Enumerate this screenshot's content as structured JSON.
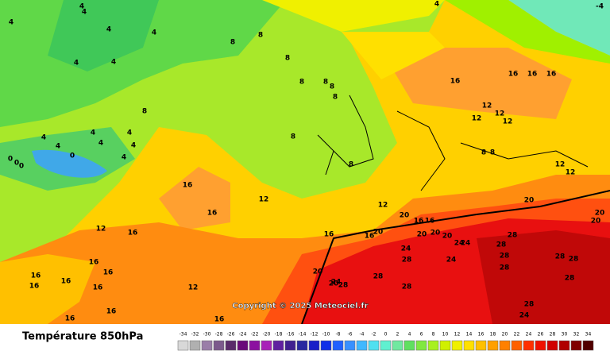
{
  "map": {
    "contour_labels": [
      4,
      4,
      4,
      4,
      4,
      4,
      4,
      4,
      -4,
      8,
      8,
      8,
      8,
      8,
      8,
      8,
      8,
      8,
      8,
      8,
      8,
      4,
      4,
      4,
      4,
      4,
      4,
      4,
      0,
      0,
      0,
      0,
      16,
      16,
      16,
      16,
      16,
      16,
      16,
      16,
      16,
      16,
      16,
      16,
      16,
      16,
      16,
      16,
      16,
      16,
      16,
      16,
      12,
      12,
      12,
      12,
      12,
      12,
      12,
      12,
      12,
      12,
      20,
      20,
      20,
      20,
      20,
      20,
      20,
      20,
      20,
      20,
      24,
      24,
      24,
      24,
      24,
      24,
      28,
      28,
      28,
      28,
      28,
      28,
      28,
      28,
      28,
      28,
      28,
      28
    ],
    "copyright": "Copyright © 2025 Meteociel.fr"
  },
  "legend": {
    "title": "Température 850hPa",
    "scale": [
      -34,
      -32,
      -30,
      -28,
      -26,
      -24,
      -22,
      -20,
      -18,
      -16,
      -14,
      -12,
      -10,
      -8,
      -6,
      -4,
      -2,
      0,
      2,
      4,
      6,
      8,
      10,
      12,
      14,
      16,
      18,
      20,
      22,
      24,
      26,
      28,
      30,
      32,
      34
    ],
    "colors": [
      "#d8d8d8",
      "#b0b0b0",
      "#9a7ea8",
      "#7c5a8c",
      "#5a2a6a",
      "#6a0a7a",
      "#8c10a0",
      "#a820b8",
      "#6020a0",
      "#402090",
      "#2828a0",
      "#1820c8",
      "#1030e8",
      "#2060ff",
      "#3890ff",
      "#40b8ff",
      "#50e0f0",
      "#60f0d0",
      "#70e8a0",
      "#60e060",
      "#80e840",
      "#a8f020",
      "#d0f000",
      "#f0f000",
      "#ffe000",
      "#ffc000",
      "#ffa000",
      "#ff8000",
      "#ff6000",
      "#ff3000",
      "#f01000",
      "#d00000",
      "#b00000",
      "#800000",
      "#500000"
    ]
  }
}
